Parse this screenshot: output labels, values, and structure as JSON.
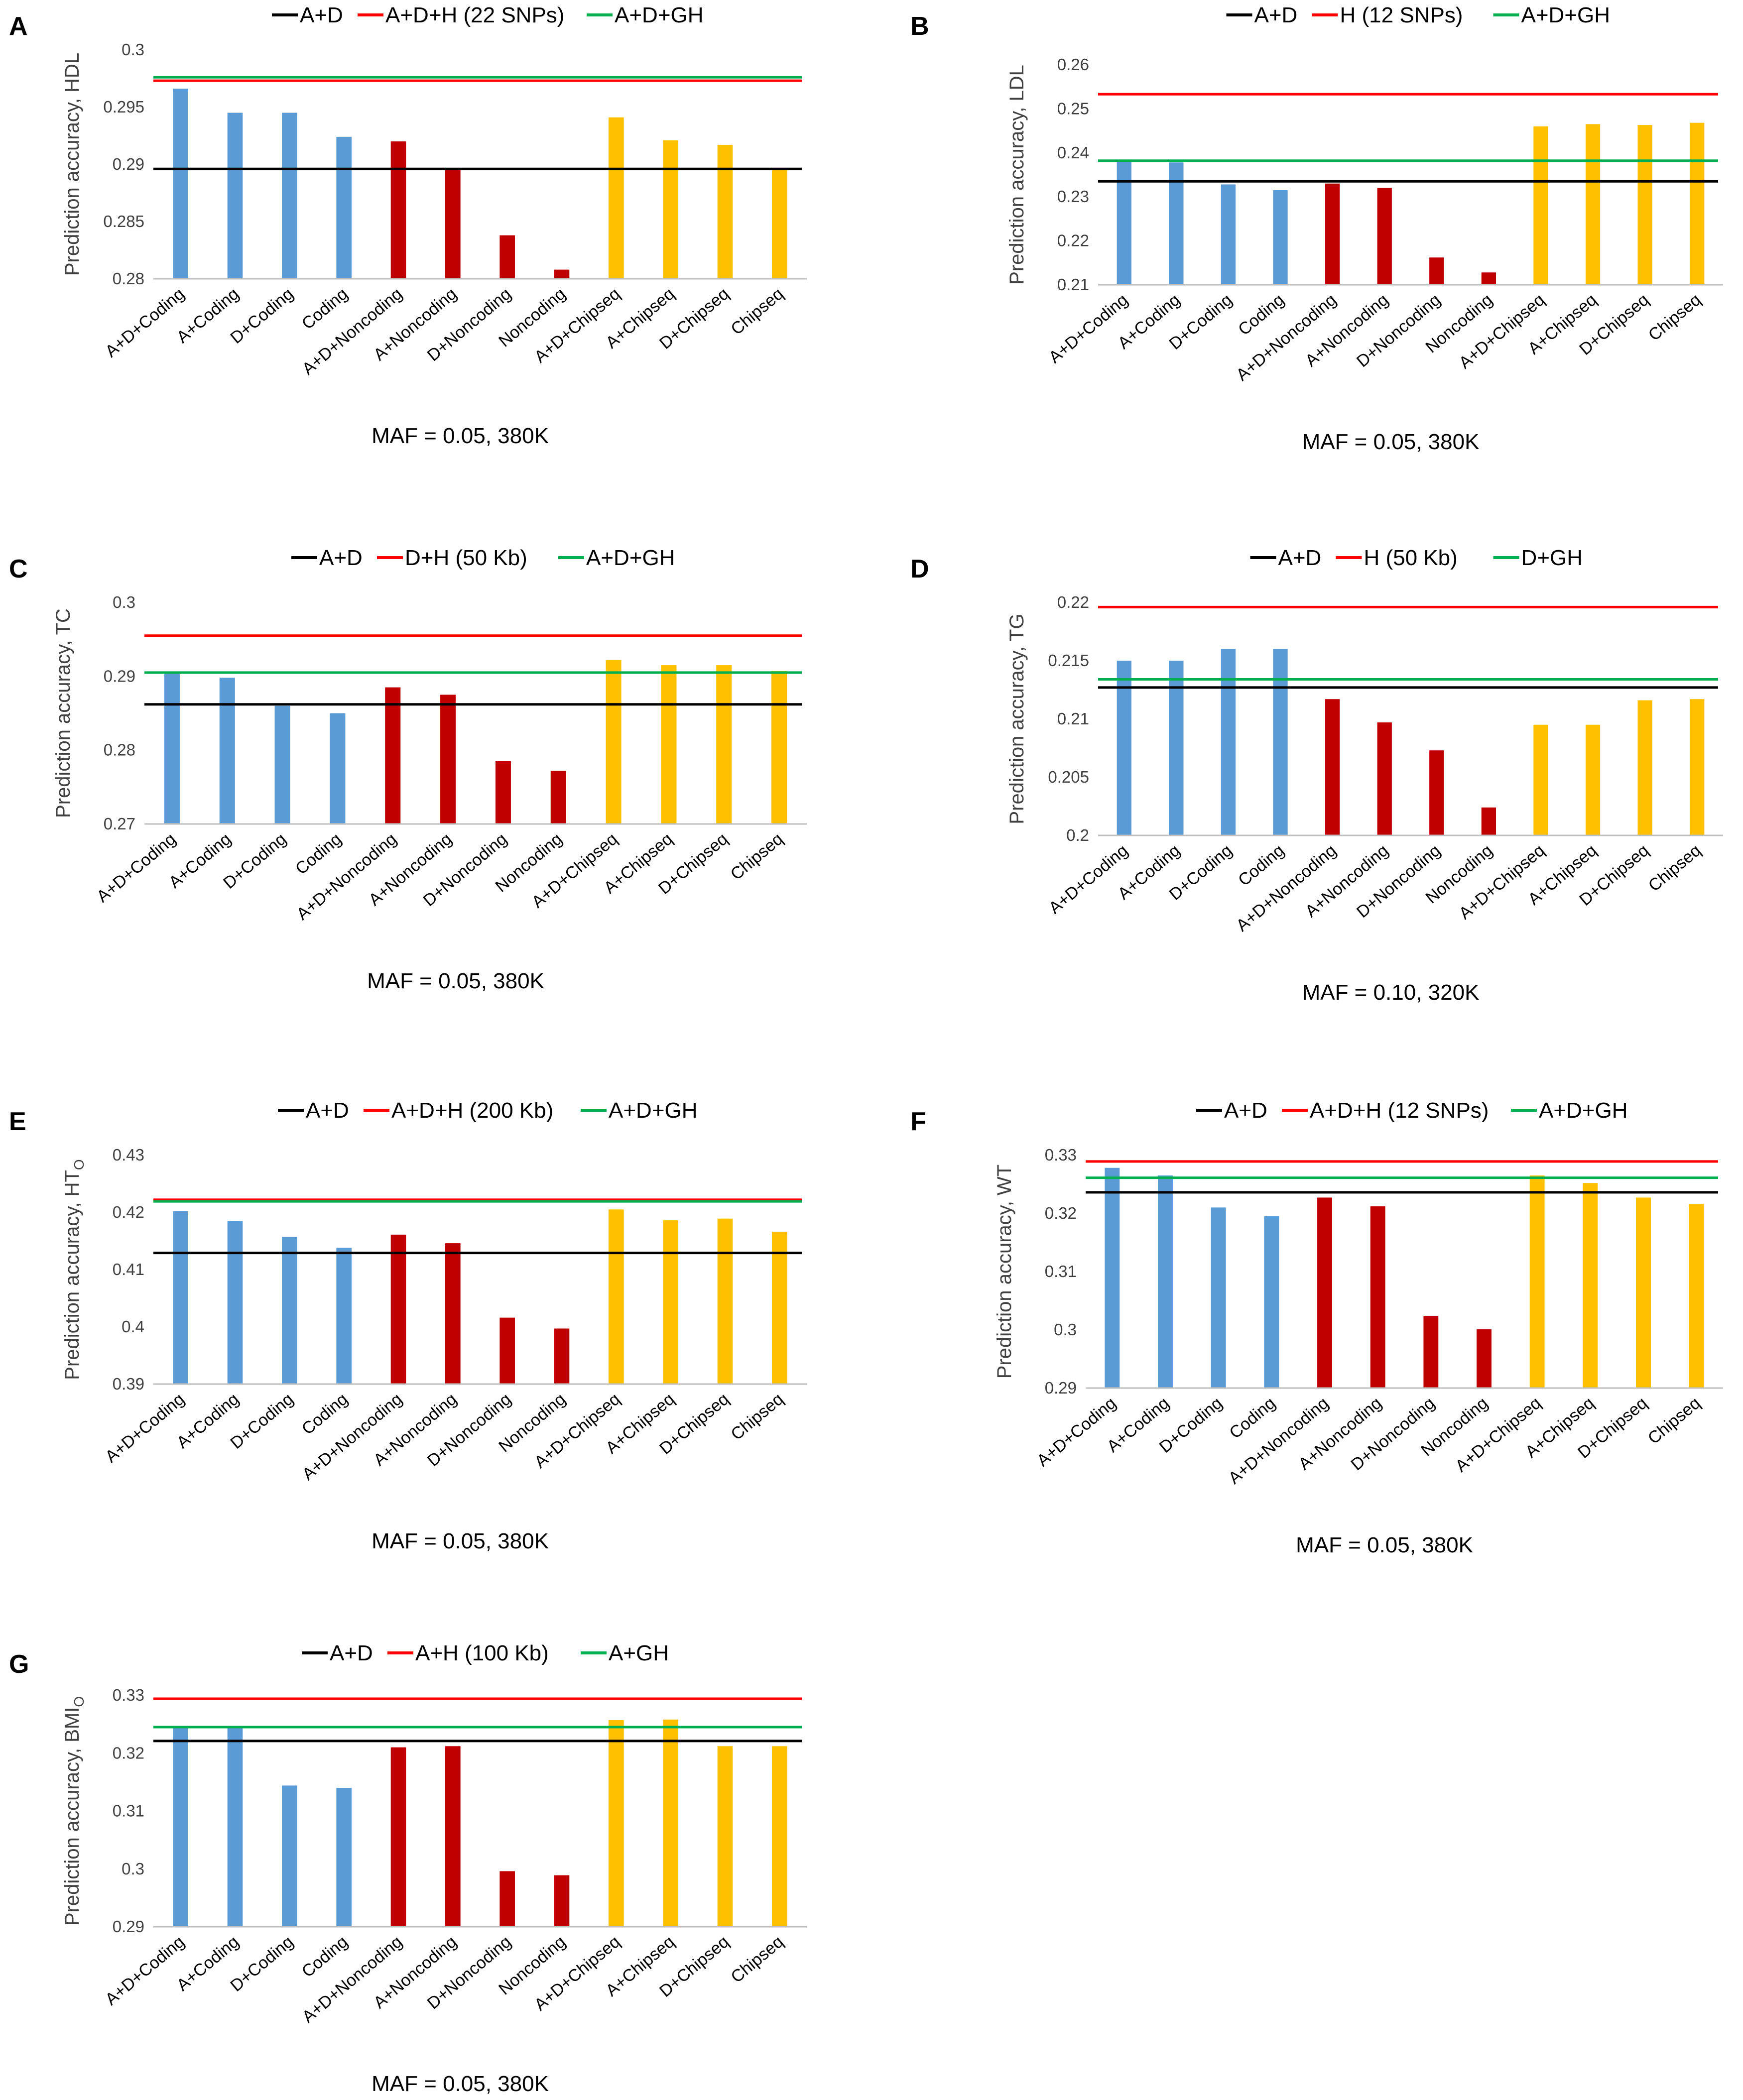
{
  "figure": {
    "colors": {
      "coding": "#5b9bd5",
      "noncoding": "#c00000",
      "chipseq": "#ffc000",
      "line_ad": "#000000",
      "line_h": "#ff0000",
      "line_gh": "#00b050"
    }
  },
  "chart_data": [
    {
      "panel": "A",
      "type": "bar",
      "title": "",
      "ylabel": "Prediction accuracy, HDL",
      "ylabel_sub": "",
      "xlabel": "MAF = 0.05, 380K",
      "categories": [
        "A+D+Coding",
        "A+Coding",
        "D+Coding",
        "Coding",
        "A+D+Noncoding",
        "A+Noncoding",
        "D+Noncoding",
        "Noncoding",
        "A+D+Chipseq",
        "A+Chipseq",
        "D+Chipseq",
        "Chipseq"
      ],
      "values": [
        0.2966,
        0.2945,
        0.2945,
        0.2924,
        0.292,
        0.2896,
        0.2838,
        0.2808,
        0.2941,
        0.2921,
        0.2917,
        0.2896
      ],
      "groups": [
        "coding",
        "coding",
        "coding",
        "coding",
        "noncoding",
        "noncoding",
        "noncoding",
        "noncoding",
        "chipseq",
        "chipseq",
        "chipseq",
        "chipseq"
      ],
      "ylim": [
        0.28,
        0.3
      ],
      "yticks": [
        "0.28",
        "0.285",
        "0.29",
        "0.295",
        "0.3"
      ],
      "hlines": [
        {
          "name": "A+D",
          "label": "A+D",
          "value": 0.2896,
          "color": "#000000"
        },
        {
          "name": "H",
          "label": "A+D+H (22 SNPs)",
          "value": 0.2973,
          "color": "#ff0000"
        },
        {
          "name": "GH",
          "label": "A+D+GH",
          "value": 0.2976,
          "color": "#00b050"
        }
      ]
    },
    {
      "panel": "B",
      "type": "bar",
      "title": "",
      "ylabel": "Prediction accuracy, LDL",
      "ylabel_sub": "",
      "xlabel": "MAF = 0.05, 380K",
      "categories": [
        "A+D+Coding",
        "A+Coding",
        "D+Coding",
        "Coding",
        "A+D+Noncoding",
        "A+Noncoding",
        "D+Noncoding",
        "Noncoding",
        "A+D+Chipseq",
        "A+Chipseq",
        "D+Chipseq",
        "Chipseq"
      ],
      "values": [
        0.238,
        0.2378,
        0.2328,
        0.2315,
        0.233,
        0.232,
        0.2162,
        0.2128,
        0.246,
        0.2465,
        0.2463,
        0.2468
      ],
      "groups": [
        "coding",
        "coding",
        "coding",
        "coding",
        "noncoding",
        "noncoding",
        "noncoding",
        "noncoding",
        "chipseq",
        "chipseq",
        "chipseq",
        "chipseq"
      ],
      "ylim": [
        0.21,
        0.26
      ],
      "yticks": [
        "0.21",
        "0.22",
        "0.23",
        "0.24",
        "0.25",
        "0.26"
      ],
      "hlines": [
        {
          "name": "A+D",
          "label": "A+D",
          "value": 0.2335,
          "color": "#000000"
        },
        {
          "name": "H",
          "label": "H (12 SNPs)",
          "value": 0.2533,
          "color": "#ff0000"
        },
        {
          "name": "GH",
          "label": "A+D+GH",
          "value": 0.2382,
          "color": "#00b050"
        }
      ]
    },
    {
      "panel": "C",
      "type": "bar",
      "title": "",
      "ylabel": "Prediction accuracy, TC",
      "ylabel_sub": "",
      "xlabel": "MAF = 0.05, 380K",
      "categories": [
        "A+D+Coding",
        "A+Coding",
        "D+Coding",
        "Coding",
        "A+D+Noncoding",
        "A+Noncoding",
        "D+Noncoding",
        "Noncoding",
        "A+D+Chipseq",
        "A+Chipseq",
        "D+Chipseq",
        "Chipseq"
      ],
      "values": [
        0.2905,
        0.2898,
        0.286,
        0.285,
        0.2885,
        0.2875,
        0.2785,
        0.2772,
        0.2922,
        0.2915,
        0.2915,
        0.2907
      ],
      "groups": [
        "coding",
        "coding",
        "coding",
        "coding",
        "noncoding",
        "noncoding",
        "noncoding",
        "noncoding",
        "chipseq",
        "chipseq",
        "chipseq",
        "chipseq"
      ],
      "ylim": [
        0.27,
        0.3
      ],
      "yticks": [
        "0.27",
        "0.28",
        "0.29",
        "0.3"
      ],
      "hlines": [
        {
          "name": "A+D",
          "label": "A+D",
          "value": 0.2862,
          "color": "#000000"
        },
        {
          "name": "H",
          "label": "D+H (50 Kb)",
          "value": 0.2955,
          "color": "#ff0000"
        },
        {
          "name": "GH",
          "label": "A+D+GH",
          "value": 0.2905,
          "color": "#00b050"
        }
      ]
    },
    {
      "panel": "D",
      "type": "bar",
      "title": "",
      "ylabel": "Prediction accuracy, TG",
      "ylabel_sub": "",
      "xlabel": "MAF = 0.10, 320K",
      "categories": [
        "A+D+Coding",
        "A+Coding",
        "D+Coding",
        "Coding",
        "A+D+Noncoding",
        "A+Noncoding",
        "D+Noncoding",
        "Noncoding",
        "A+D+Chipseq",
        "A+Chipseq",
        "D+Chipseq",
        "Chipseq"
      ],
      "values": [
        0.215,
        0.215,
        0.216,
        0.216,
        0.2117,
        0.2097,
        0.2073,
        0.2024,
        0.2095,
        0.2095,
        0.2116,
        0.2117
      ],
      "groups": [
        "coding",
        "coding",
        "coding",
        "coding",
        "noncoding",
        "noncoding",
        "noncoding",
        "noncoding",
        "chipseq",
        "chipseq",
        "chipseq",
        "chipseq"
      ],
      "ylim": [
        0.2,
        0.22
      ],
      "yticks": [
        "0.2",
        "0.205",
        "0.21",
        "0.215",
        "0.22"
      ],
      "hlines": [
        {
          "name": "A+D",
          "label": "A+D",
          "value": 0.2127,
          "color": "#000000"
        },
        {
          "name": "H",
          "label": "H (50 Kb)",
          "value": 0.2196,
          "color": "#ff0000"
        },
        {
          "name": "GH",
          "label": "D+GH",
          "value": 0.2134,
          "color": "#00b050"
        }
      ]
    },
    {
      "panel": "E",
      "type": "bar",
      "title": "",
      "ylabel": "Prediction accuracy, HT",
      "ylabel_sub": "O",
      "xlabel": "MAF = 0.05, 380K",
      "categories": [
        "A+D+Coding",
        "A+Coding",
        "D+Coding",
        "Coding",
        "A+D+Noncoding",
        "A+Noncoding",
        "D+Noncoding",
        "Noncoding",
        "A+D+Chipseq",
        "A+Chipseq",
        "D+Chipseq",
        "Chipseq"
      ],
      "values": [
        0.4202,
        0.4185,
        0.4157,
        0.4138,
        0.4161,
        0.4146,
        0.4016,
        0.3997,
        0.4205,
        0.4186,
        0.4189,
        0.4166
      ],
      "groups": [
        "coding",
        "coding",
        "coding",
        "coding",
        "noncoding",
        "noncoding",
        "noncoding",
        "noncoding",
        "chipseq",
        "chipseq",
        "chipseq",
        "chipseq"
      ],
      "ylim": [
        0.39,
        0.43
      ],
      "yticks": [
        "0.39",
        "0.4",
        "0.41",
        "0.42",
        "0.43"
      ],
      "hlines": [
        {
          "name": "A+D",
          "label": "A+D",
          "value": 0.4129,
          "color": "#000000"
        },
        {
          "name": "H",
          "label": "A+D+H (200 Kb)",
          "value": 0.4222,
          "color": "#ff0000"
        },
        {
          "name": "GH",
          "label": "A+D+GH",
          "value": 0.4219,
          "color": "#00b050"
        }
      ]
    },
    {
      "panel": "F",
      "type": "bar",
      "title": "",
      "ylabel": "Prediction accuracy, WT",
      "ylabel_sub": "",
      "xlabel": "MAF = 0.05, 380K",
      "categories": [
        "A+D+Coding",
        "A+Coding",
        "D+Coding",
        "Coding",
        "A+D+Noncoding",
        "A+Noncoding",
        "D+Noncoding",
        "Noncoding",
        "A+D+Chipseq",
        "A+Chipseq",
        "D+Chipseq",
        "Chipseq"
      ],
      "values": [
        0.3278,
        0.3265,
        0.321,
        0.3195,
        0.3227,
        0.3212,
        0.3024,
        0.3001,
        0.3265,
        0.3252,
        0.3227,
        0.3216
      ],
      "groups": [
        "coding",
        "coding",
        "coding",
        "coding",
        "noncoding",
        "noncoding",
        "noncoding",
        "noncoding",
        "chipseq",
        "chipseq",
        "chipseq",
        "chipseq"
      ],
      "ylim": [
        0.29,
        0.33
      ],
      "yticks": [
        "0.29",
        "0.3",
        "0.31",
        "0.32",
        "0.33"
      ],
      "hlines": [
        {
          "name": "A+D",
          "label": "A+D",
          "value": 0.3236,
          "color": "#000000"
        },
        {
          "name": "H",
          "label": "A+D+H (12 SNPs)",
          "value": 0.3289,
          "color": "#ff0000"
        },
        {
          "name": "GH",
          "label": "A+D+GH",
          "value": 0.3261,
          "color": "#00b050"
        }
      ]
    },
    {
      "panel": "G",
      "type": "bar",
      "title": "",
      "ylabel": "Prediction accuracy, BMI",
      "ylabel_sub": "O",
      "xlabel": "MAF = 0.05, 380K",
      "categories": [
        "A+D+Coding",
        "A+Coding",
        "D+Coding",
        "Coding",
        "A+D+Noncoding",
        "A+Noncoding",
        "D+Noncoding",
        "Noncoding",
        "A+D+Chipseq",
        "A+Chipseq",
        "D+Chipseq",
        "Chipseq"
      ],
      "values": [
        0.3243,
        0.3246,
        0.3144,
        0.314,
        0.321,
        0.3212,
        0.2996,
        0.2989,
        0.3257,
        0.3258,
        0.3212,
        0.3212
      ],
      "groups": [
        "coding",
        "coding",
        "coding",
        "coding",
        "noncoding",
        "noncoding",
        "noncoding",
        "noncoding",
        "chipseq",
        "chipseq",
        "chipseq",
        "chipseq"
      ],
      "ylim": [
        0.29,
        0.33
      ],
      "yticks": [
        "0.29",
        "0.3",
        "0.31",
        "0.32",
        "0.33"
      ],
      "hlines": [
        {
          "name": "A+D",
          "label": "A+D",
          "value": 0.3221,
          "color": "#000000"
        },
        {
          "name": "H",
          "label": "A+H (100 Kb)",
          "value": 0.3294,
          "color": "#ff0000"
        },
        {
          "name": "GH",
          "label": "A+GH",
          "value": 0.3245,
          "color": "#00b050"
        }
      ]
    }
  ]
}
